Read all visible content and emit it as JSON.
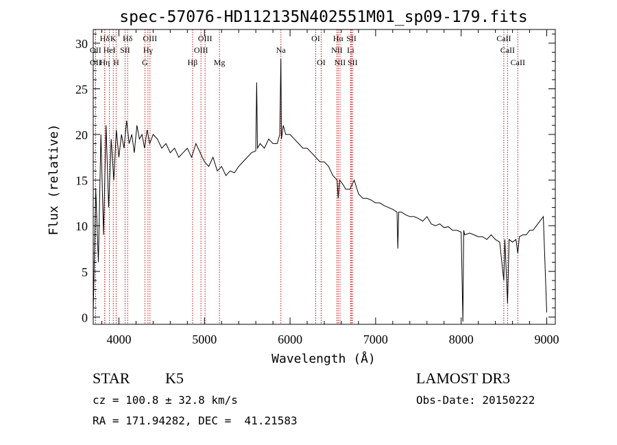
{
  "chart_data": {
    "type": "line",
    "title": "spec-57076-HD112135N402551M01_sp09-179.fits",
    "xlabel": "Wavelength (Å)",
    "ylabel": "Flux (relative)",
    "xlim": [
      3700,
      9100
    ],
    "ylim": [
      -0.8,
      31.5
    ],
    "xticks": [
      4000,
      5000,
      6000,
      7000,
      8000,
      9000
    ],
    "yticks": [
      0,
      5,
      10,
      15,
      20,
      25,
      30
    ],
    "grid": false,
    "series": [
      {
        "name": "spectrum",
        "x": [
          3700,
          3730,
          3760,
          3790,
          3820,
          3850,
          3880,
          3910,
          3940,
          3970,
          4000,
          4030,
          4060,
          4090,
          4120,
          4150,
          4180,
          4210,
          4240,
          4270,
          4300,
          4330,
          4360,
          4400,
          4450,
          4500,
          4550,
          4600,
          4650,
          4700,
          4750,
          4800,
          4850,
          4900,
          4950,
          5000,
          5050,
          5100,
          5150,
          5200,
          5250,
          5300,
          5350,
          5400,
          5450,
          5500,
          5550,
          5600,
          5610,
          5620,
          5650,
          5700,
          5750,
          5800,
          5850,
          5880,
          5893,
          5900,
          5920,
          5950,
          6000,
          6050,
          6100,
          6150,
          6200,
          6250,
          6300,
          6350,
          6400,
          6450,
          6500,
          6550,
          6563,
          6580,
          6620,
          6650,
          6700,
          6750,
          6800,
          6850,
          6900,
          6950,
          7000,
          7050,
          7100,
          7150,
          7200,
          7250,
          7260,
          7270,
          7300,
          7350,
          7400,
          7450,
          7500,
          7550,
          7600,
          7650,
          7700,
          7750,
          7800,
          7850,
          7900,
          7950,
          8000,
          8020,
          8030,
          8040,
          8100,
          8150,
          8200,
          8250,
          8300,
          8350,
          8400,
          8450,
          8498,
          8510,
          8542,
          8560,
          8600,
          8640,
          8662,
          8680,
          8720,
          8760,
          8800,
          8840,
          8880,
          8920,
          8960,
          9000
        ],
        "values": [
          0.5,
          14.0,
          6.0,
          20.0,
          9.0,
          21.0,
          12.0,
          19.5,
          15.0,
          20.5,
          17.5,
          20.0,
          18.5,
          21.5,
          19.0,
          20.0,
          18.0,
          21.0,
          19.5,
          20.0,
          18.5,
          20.5,
          19.0,
          20.0,
          19.5,
          18.5,
          19.0,
          18.0,
          18.5,
          17.5,
          18.0,
          18.5,
          17.5,
          19.0,
          18.0,
          17.0,
          16.5,
          17.5,
          16.0,
          16.5,
          15.5,
          16.0,
          15.8,
          16.5,
          17.0,
          17.5,
          18.0,
          18.2,
          25.7,
          18.5,
          19.0,
          18.5,
          19.5,
          19.0,
          19.0,
          20.0,
          28.3,
          19.5,
          21.0,
          20.0,
          20.0,
          19.5,
          19.0,
          18.5,
          18.5,
          18.0,
          17.5,
          17.0,
          17.0,
          16.5,
          15.5,
          15.0,
          13.0,
          15.0,
          14.5,
          14.0,
          14.0,
          15.0,
          13.5,
          13.0,
          13.0,
          12.8,
          12.5,
          12.5,
          12.2,
          12.0,
          11.8,
          11.5,
          7.5,
          11.5,
          11.5,
          11.2,
          11.0,
          11.0,
          10.8,
          10.5,
          11.0,
          10.2,
          10.0,
          10.2,
          9.8,
          9.9,
          9.5,
          9.5,
          9.3,
          -0.5,
          9.5,
          9.0,
          9.2,
          9.0,
          8.8,
          8.8,
          8.5,
          9.0,
          8.5,
          8.2,
          4.0,
          8.5,
          1.5,
          8.5,
          8.2,
          8.5,
          7.0,
          8.8,
          9.0,
          9.0,
          9.5,
          9.5,
          10.0,
          10.5,
          11.0,
          0.5
        ]
      }
    ],
    "lines": [
      {
        "label": "Hδ",
        "wl": 3835,
        "row": 0
      },
      {
        "label": "K",
        "wl": 3934,
        "row": 0
      },
      {
        "label": "Hδ",
        "wl": 4102,
        "row": 0
      },
      {
        "label": "OIII",
        "wl": 4363,
        "row": 0
      },
      {
        "label": "OIII",
        "wl": 5007,
        "row": 0
      },
      {
        "label": "OI",
        "wl": 6300,
        "row": 0
      },
      {
        "label": "Hα",
        "wl": 6563,
        "row": 0
      },
      {
        "label": "SII",
        "wl": 6717,
        "row": 0
      },
      {
        "label": "CaII",
        "wl": 8498,
        "row": 0
      },
      {
        "label": "OII",
        "wl": 3727,
        "row": 1
      },
      {
        "label": "HeI",
        "wl": 3889,
        "row": 1
      },
      {
        "label": "SII",
        "wl": 4072,
        "row": 1
      },
      {
        "label": "Hγ",
        "wl": 4340,
        "row": 1
      },
      {
        "label": "OIII",
        "wl": 4959,
        "row": 1
      },
      {
        "label": "Na",
        "wl": 5893,
        "row": 1
      },
      {
        "label": "NII",
        "wl": 6548,
        "row": 1
      },
      {
        "label": "Li",
        "wl": 6708,
        "row": 1
      },
      {
        "label": "CaII",
        "wl": 8542,
        "row": 1
      },
      {
        "label": "OII",
        "wl": 3727,
        "row": 2
      },
      {
        "label": "Hη",
        "wl": 3835,
        "row": 2
      },
      {
        "label": "H",
        "wl": 3968,
        "row": 2
      },
      {
        "label": "G",
        "wl": 4304,
        "row": 2
      },
      {
        "label": "Hβ",
        "wl": 4861,
        "row": 2
      },
      {
        "label": "Mg",
        "wl": 5175,
        "row": 2
      },
      {
        "label": "OI",
        "wl": 6364,
        "row": 2
      },
      {
        "label": "NII",
        "wl": 6584,
        "row": 2
      },
      {
        "label": "SII",
        "wl": 6731,
        "row": 2
      },
      {
        "label": "CaII",
        "wl": 8662,
        "row": 2
      }
    ],
    "line_color": "#cc0000",
    "trace_color": "#000000"
  },
  "info": {
    "class": "STAR",
    "subclass": "K5",
    "survey": "LAMOST DR3",
    "cz": "cz = 100.8 ± 32.8 km/s",
    "obs_date": "Obs-Date: 20150222",
    "radec": "RA = 171.94282, DEC =  41.21583"
  }
}
